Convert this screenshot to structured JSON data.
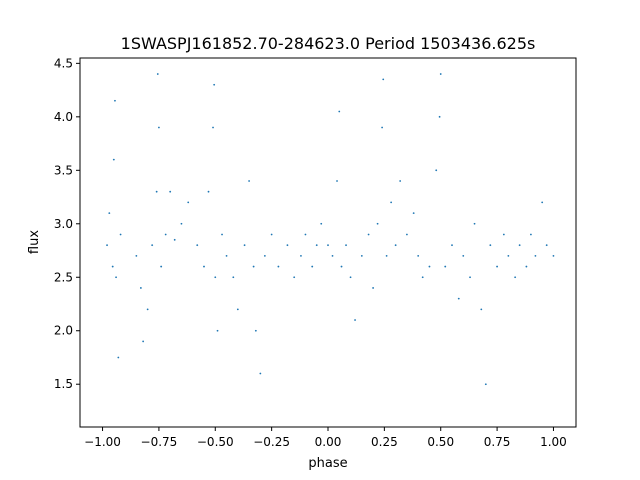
{
  "chart_data": {
    "type": "scatter",
    "title": "1SWASPJ161852.70-284623.0 Period 1503436.625s",
    "xlabel": "phase",
    "ylabel": "flux",
    "xlim": [
      -1.1,
      1.1
    ],
    "ylim": [
      1.1,
      4.55
    ],
    "x_ticks": [
      -1.0,
      -0.75,
      -0.5,
      -0.25,
      0.0,
      0.25,
      0.5,
      0.75,
      1.0
    ],
    "x_tick_labels": [
      "−1.00",
      "−0.75",
      "−0.50",
      "−0.25",
      "0.00",
      "0.25",
      "0.50",
      "0.75",
      "1.00"
    ],
    "y_ticks": [
      1.5,
      2.0,
      2.5,
      3.0,
      3.5,
      4.0,
      4.5
    ],
    "y_tick_labels": [
      "1.5",
      "2.0",
      "2.5",
      "3.0",
      "3.5",
      "4.0",
      "4.5"
    ],
    "grid": false,
    "marker_color": "#1f77b4",
    "series": [
      {
        "points": [
          [
            -0.98,
            2.8
          ],
          [
            -0.97,
            3.1
          ],
          [
            -0.955,
            2.6
          ],
          [
            -0.95,
            3.6
          ],
          [
            -0.945,
            4.15
          ],
          [
            -0.94,
            2.5
          ],
          [
            -0.93,
            1.75
          ],
          [
            -0.92,
            2.9
          ],
          [
            -0.85,
            2.7
          ],
          [
            -0.83,
            2.4
          ],
          [
            -0.82,
            1.9
          ],
          [
            -0.8,
            2.2
          ],
          [
            -0.78,
            2.8
          ],
          [
            -0.76,
            3.3
          ],
          [
            -0.755,
            4.4
          ],
          [
            -0.75,
            3.9
          ],
          [
            -0.74,
            2.6
          ],
          [
            -0.72,
            2.9
          ],
          [
            -0.7,
            3.3
          ],
          [
            -0.68,
            2.85
          ],
          [
            -0.65,
            3.0
          ],
          [
            -0.62,
            3.2
          ],
          [
            -0.58,
            2.8
          ],
          [
            -0.55,
            2.6
          ],
          [
            -0.53,
            3.3
          ],
          [
            -0.51,
            3.9
          ],
          [
            -0.505,
            4.3
          ],
          [
            -0.5,
            2.5
          ],
          [
            -0.49,
            2.0
          ],
          [
            -0.47,
            2.9
          ],
          [
            -0.45,
            2.7
          ],
          [
            -0.42,
            2.5
          ],
          [
            -0.4,
            2.2
          ],
          [
            -0.37,
            2.8
          ],
          [
            -0.35,
            3.4
          ],
          [
            -0.33,
            2.6
          ],
          [
            -0.32,
            2.0
          ],
          [
            -0.3,
            1.6
          ],
          [
            -0.28,
            2.7
          ],
          [
            -0.25,
            2.9
          ],
          [
            -0.22,
            2.6
          ],
          [
            -0.18,
            2.8
          ],
          [
            -0.15,
            2.5
          ],
          [
            -0.12,
            2.7
          ],
          [
            -0.1,
            2.9
          ],
          [
            -0.07,
            2.6
          ],
          [
            -0.05,
            2.8
          ],
          [
            -0.03,
            3.0
          ],
          [
            0.0,
            2.8
          ],
          [
            0.02,
            2.7
          ],
          [
            0.04,
            3.4
          ],
          [
            0.05,
            4.05
          ],
          [
            0.06,
            2.6
          ],
          [
            0.08,
            2.8
          ],
          [
            0.1,
            2.5
          ],
          [
            0.12,
            2.1
          ],
          [
            0.15,
            2.7
          ],
          [
            0.18,
            2.9
          ],
          [
            0.2,
            2.4
          ],
          [
            0.22,
            3.0
          ],
          [
            0.24,
            3.9
          ],
          [
            0.245,
            4.35
          ],
          [
            0.26,
            2.7
          ],
          [
            0.28,
            3.2
          ],
          [
            0.3,
            2.8
          ],
          [
            0.32,
            3.4
          ],
          [
            0.35,
            2.9
          ],
          [
            0.38,
            3.1
          ],
          [
            0.4,
            2.7
          ],
          [
            0.42,
            2.5
          ],
          [
            0.45,
            2.6
          ],
          [
            0.48,
            3.5
          ],
          [
            0.495,
            4.0
          ],
          [
            0.5,
            4.4
          ],
          [
            0.52,
            2.6
          ],
          [
            0.55,
            2.8
          ],
          [
            0.58,
            2.3
          ],
          [
            0.6,
            2.7
          ],
          [
            0.63,
            2.5
          ],
          [
            0.65,
            3.0
          ],
          [
            0.68,
            2.2
          ],
          [
            0.7,
            1.5
          ],
          [
            0.72,
            2.8
          ],
          [
            0.75,
            2.6
          ],
          [
            0.78,
            2.9
          ],
          [
            0.8,
            2.7
          ],
          [
            0.83,
            2.5
          ],
          [
            0.85,
            2.8
          ],
          [
            0.88,
            2.6
          ],
          [
            0.9,
            2.9
          ],
          [
            0.92,
            2.7
          ],
          [
            0.95,
            3.2
          ],
          [
            0.97,
            2.8
          ],
          [
            1.0,
            2.7
          ]
        ]
      }
    ]
  }
}
